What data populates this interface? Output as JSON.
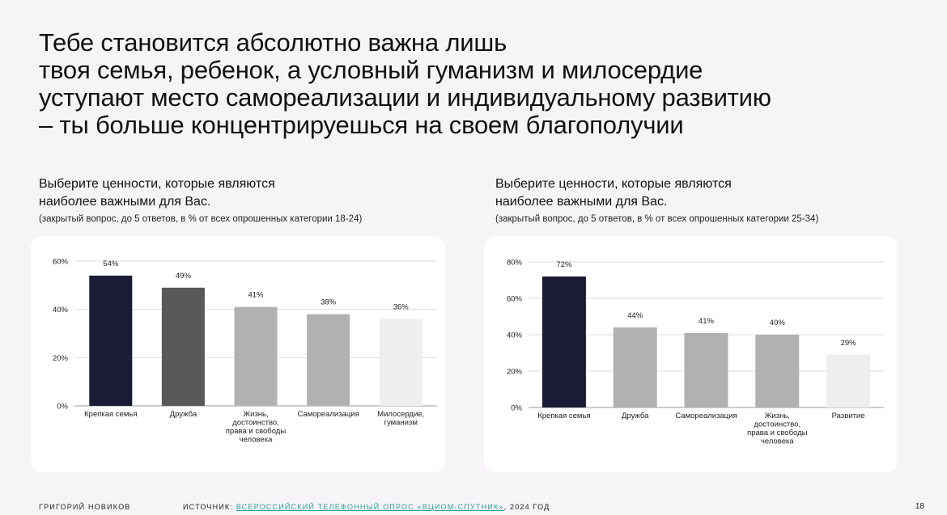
{
  "title": {
    "lines": [
      "Тебе становится абсолютно важна лишь",
      "твоя семья, ребенок, а условный гуманизм и милосердие",
      "уступают место самореализации и индивидуальному развитию",
      "– ты больше концентрируешься на своем благополучии"
    ]
  },
  "left": {
    "heading_line1": "Выберите ценности, которые являются",
    "heading_line2": "наиболее важными для Вас.",
    "note": "(закрытый вопрос, до 5 ответов, в % от всех опрошенных категории 18-24)"
  },
  "right": {
    "heading_line1": "Выберите ценности, которые являются",
    "heading_line2": "наиболее важными для Вас.",
    "note": "(закрытый вопрос, до 5 ответов, в % от всех опрошенных категории 25-34)"
  },
  "footer": {
    "author": "Григорий Новиков",
    "source_prefix": "Источник: ",
    "source_link": "Всероссийский телефонный опрос «ВЦИОМ-Спутник»",
    "source_suffix": ", 2024 год",
    "page": "18"
  },
  "colors": {
    "dark": "#1c1b36",
    "darkgray": "#59585b",
    "gray": "#b1b1b1",
    "lightgray": "#eeeeee"
  },
  "chart_data": [
    {
      "type": "bar",
      "categories": [
        "Крепкая семья",
        "Дружба",
        "Жизнь, достоинство, права и свободы человека",
        "Самореализация",
        "Милосердие, гуманизм"
      ],
      "category_lines": [
        [
          "Крепкая семья"
        ],
        [
          "Дружба"
        ],
        [
          "Жизнь,",
          "достоинство,",
          "права и свободы",
          "человека"
        ],
        [
          "Самореализация"
        ],
        [
          "Милосердие,",
          "гуманизм"
        ]
      ],
      "values": [
        54,
        49,
        41,
        38,
        36
      ],
      "data_labels": [
        "54%",
        "49%",
        "41%",
        "38%",
        "36%"
      ],
      "bar_colors": [
        "#1c1b36",
        "#59585b",
        "#b1b1b1",
        "#b1b1b1",
        "#eeeeee"
      ],
      "ylim": [
        0,
        60
      ],
      "yticks": [
        0,
        20,
        40,
        60
      ],
      "ytick_labels": [
        "0%",
        "20%",
        "40%",
        "60%"
      ],
      "grid": true
    },
    {
      "type": "bar",
      "categories": [
        "Крепкая семья",
        "Дружба",
        "Самореализация",
        "Жизнь, достоинство, права и свободы человека",
        "Развитие"
      ],
      "category_lines": [
        [
          "Крепкая семья"
        ],
        [
          "Дружба"
        ],
        [
          "Самореализация"
        ],
        [
          "Жизнь,",
          "достоинство,",
          "права и свободы",
          "человека"
        ],
        [
          "Развитие"
        ]
      ],
      "values": [
        72,
        44,
        41,
        40,
        29
      ],
      "data_labels": [
        "72%",
        "44%",
        "41%",
        "40%",
        "29%"
      ],
      "bar_colors": [
        "#1c1b36",
        "#b1b1b1",
        "#b1b1b1",
        "#b1b1b1",
        "#eeeeee"
      ],
      "ylim": [
        0,
        80
      ],
      "yticks": [
        0,
        20,
        40,
        60,
        80
      ],
      "ytick_labels": [
        "0%",
        "20%",
        "40%",
        "60%",
        "80%"
      ],
      "grid": true
    }
  ]
}
